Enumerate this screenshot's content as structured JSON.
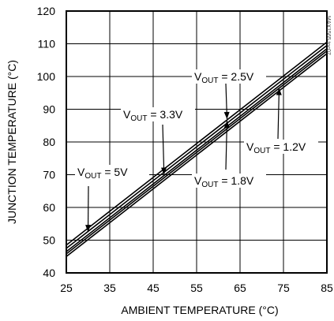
{
  "chart_data": {
    "type": "line",
    "title": "",
    "xlabel": "AMBIENT TEMPERATURE (°C)",
    "ylabel": "JUNCTION TEMPERATURE (°C)",
    "xlim": [
      25,
      85
    ],
    "ylim": [
      40,
      120
    ],
    "xticks": [
      25,
      35,
      45,
      55,
      65,
      75,
      85
    ],
    "yticks": [
      40,
      50,
      60,
      70,
      80,
      90,
      100,
      110,
      120
    ],
    "grid": true,
    "figure_code": "MAX1565 toc07",
    "series": [
      {
        "name": "VOUT = 5V",
        "x": [
          25,
          85
        ],
        "y": [
          48.5,
          110.5
        ]
      },
      {
        "name": "VOUT = 3.3V",
        "x": [
          25,
          85
        ],
        "y": [
          47.5,
          109.5
        ]
      },
      {
        "name": "VOUT = 2.5V",
        "x": [
          25,
          85
        ],
        "y": [
          46.5,
          108.5
        ]
      },
      {
        "name": "VOUT = 1.8V",
        "x": [
          25,
          85
        ],
        "y": [
          45.8,
          107.8
        ]
      },
      {
        "name": "VOUT = 1.2V",
        "x": [
          25,
          85
        ],
        "y": [
          45.0,
          107.0
        ]
      }
    ],
    "annotations": [
      {
        "label_main": "V",
        "label_sub": "OUT",
        "label_value": " = 5V",
        "target_x": 30,
        "target_y": 52.5
      },
      {
        "label_main": "V",
        "label_sub": "OUT",
        "label_value": " = 3.3V",
        "target_x": 47.5,
        "target_y": 70
      },
      {
        "label_main": "V",
        "label_sub": "OUT",
        "label_value": " = 2.5V",
        "target_x": 62,
        "target_y": 87
      },
      {
        "label_main": "V",
        "label_sub": "OUT",
        "label_value": " = 1.8V",
        "target_x": 62,
        "target_y": 86.5
      },
      {
        "label_main": "V",
        "label_sub": "OUT",
        "label_value": " = 1.2V",
        "target_x": 74,
        "target_y": 96.5
      }
    ]
  }
}
